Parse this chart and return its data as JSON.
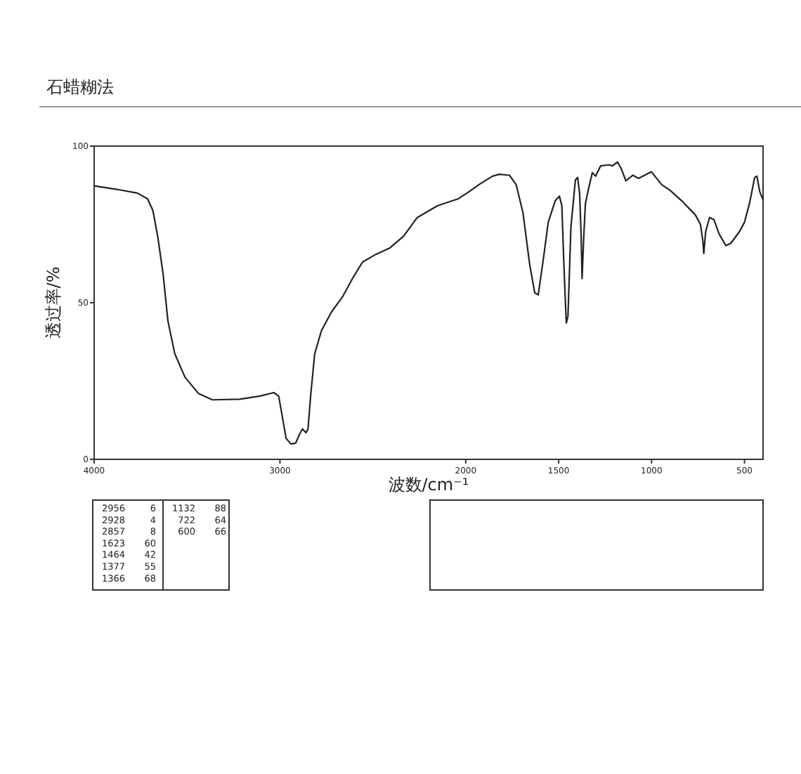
{
  "chart_data": {
    "type": "line",
    "title": "石蜡糊法",
    "xlabel": "波数/cm⁻¹",
    "ylabel": "透过率/%",
    "x": [
      4000,
      3879,
      3768,
      3713,
      3684,
      3658,
      3629,
      3603,
      3566,
      3511,
      3438,
      3364,
      3217,
      3107,
      3033,
      3007,
      2989,
      2967,
      2941,
      2915,
      2893,
      2879,
      2860,
      2849,
      2835,
      2813,
      2776,
      2721,
      2665,
      2610,
      2555,
      2482,
      2408,
      2335,
      2261,
      2151,
      2040,
      1993,
      1929,
      1856,
      1820,
      1765,
      1729,
      1692,
      1656,
      1629,
      1610,
      1583,
      1556,
      1519,
      1496,
      1483,
      1470,
      1459,
      1450,
      1434,
      1410,
      1398,
      1387,
      1379,
      1374,
      1365,
      1356,
      1337,
      1319,
      1301,
      1274,
      1229,
      1210,
      1183,
      1165,
      1138,
      1101,
      1070,
      1001,
      946,
      901,
      837,
      764,
      737,
      724,
      719,
      709,
      688,
      664,
      637,
      600,
      573,
      527,
      500,
      473,
      445,
      433,
      418,
      400
    ],
    "series": [
      {
        "color": "#222222",
        "values": [
          87.3,
          86.2,
          85.0,
          83.2,
          79.5,
          71.2,
          59.2,
          44.2,
          33.7,
          26.2,
          21.0,
          19.0,
          19.2,
          20.2,
          21.3,
          20.2,
          14.2,
          6.7,
          4.9,
          5.2,
          8.2,
          9.7,
          8.5,
          9.7,
          20.2,
          33.7,
          41.2,
          47.2,
          51.7,
          57.7,
          63.0,
          65.5,
          67.5,
          71.2,
          77.2,
          81.0,
          83.2,
          85.0,
          87.7,
          90.4,
          91.0,
          90.7,
          87.7,
          78.7,
          62.2,
          53.2,
          52.5,
          63.7,
          75.7,
          82.5,
          84.0,
          81.0,
          59.2,
          43.5,
          45.7,
          74.2,
          89.2,
          90.0,
          84.7,
          71.2,
          57.7,
          71.2,
          81.7,
          87.0,
          91.5,
          90.4,
          93.7,
          94.0,
          93.7,
          94.9,
          93.0,
          88.9,
          90.7,
          89.7,
          91.8,
          87.7,
          85.9,
          82.5,
          78.0,
          75.0,
          69.7,
          65.7,
          72.7,
          77.2,
          76.5,
          72.0,
          68.2,
          69.0,
          72.7,
          75.7,
          81.7,
          90.0,
          90.4,
          85.5,
          82.8
        ]
      }
    ],
    "xlim": [
      4000,
      400
    ],
    "xticks": [
      4000,
      3000,
      2000,
      1500,
      1000,
      500
    ],
    "ylim": [
      0,
      100
    ],
    "yticks": [
      0,
      50,
      100
    ],
    "annotations": [
      "2956 6",
      "2928 4",
      "2857 8",
      "1623 60",
      "1464 42",
      "1377 55",
      "1366 68",
      "1132 88",
      "722 64",
      "600 66"
    ]
  }
}
